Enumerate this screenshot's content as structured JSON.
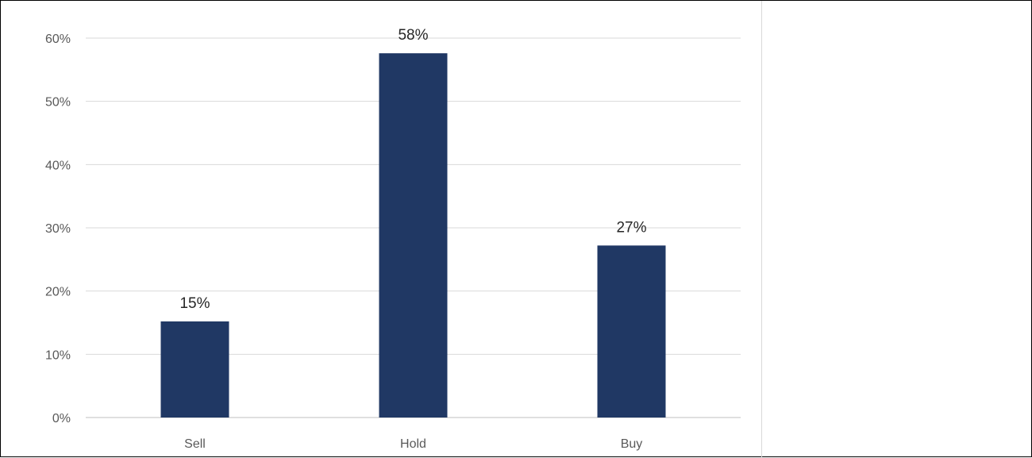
{
  "chart_data": {
    "type": "bar",
    "categories": [
      "Sell",
      "Hold",
      "Buy"
    ],
    "values": [
      15.2,
      57.6,
      27.2
    ],
    "data_labels": [
      "15%",
      "58%",
      "27%"
    ],
    "ylim": [
      0,
      60
    ],
    "yticks": [
      0,
      10,
      20,
      30,
      40,
      50,
      60
    ],
    "ytick_labels": [
      "0%",
      "10%",
      "20%",
      "30%",
      "40%",
      "50%",
      "60%"
    ],
    "title": "",
    "xlabel": "",
    "ylabel": "",
    "grid": true,
    "legend": "none",
    "colors": {
      "bar": "#203864",
      "grid": "#d9d9d9",
      "axis": "#bfbfbf"
    }
  }
}
